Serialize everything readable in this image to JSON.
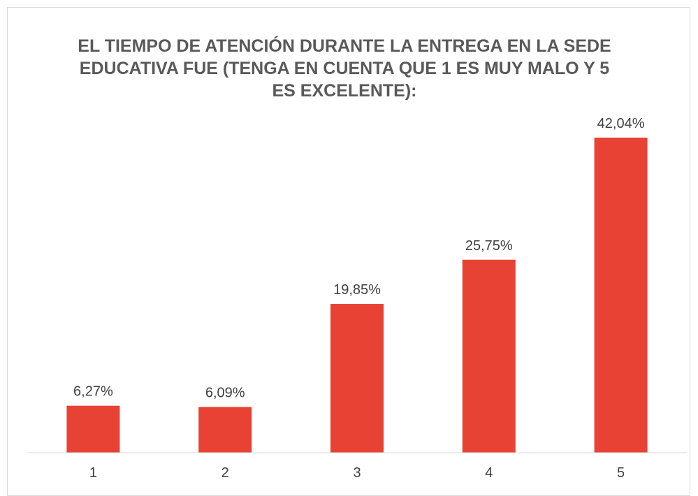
{
  "chart_data": {
    "type": "bar",
    "title": "EL TIEMPO DE ATENCIÓN DURANTE LA ENTREGA EN LA SEDE EDUCATIVA FUE (TENGA EN CUENTA QUE 1 ES MUY MALO Y 5 ES EXCELENTE):",
    "categories": [
      "1",
      "2",
      "3",
      "4",
      "5"
    ],
    "values": [
      6.27,
      6.09,
      19.85,
      25.75,
      42.04
    ],
    "value_labels": [
      "6,27%",
      "6,09%",
      "19,85%",
      "25,75%",
      "42,04%"
    ],
    "color": "#e84235"
  }
}
